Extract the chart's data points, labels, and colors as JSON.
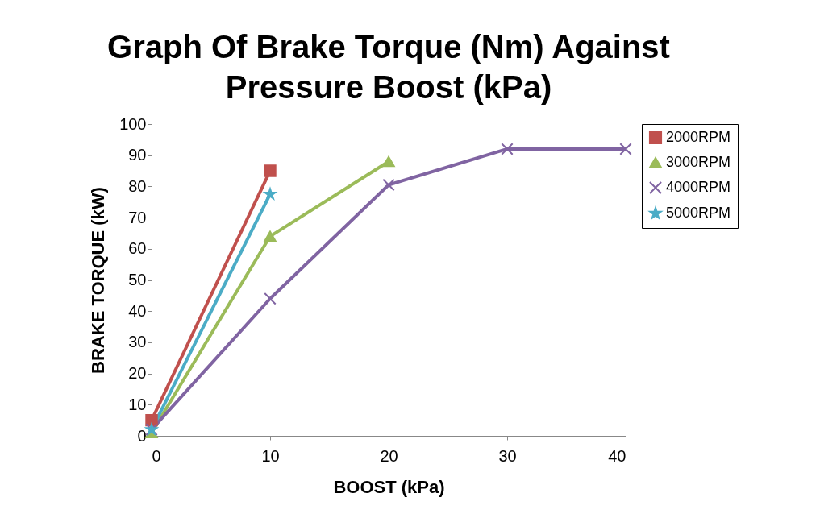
{
  "chart_data": {
    "type": "line",
    "title": [
      "Graph Of Brake Torque (Nm) Against",
      "Pressure Boost (kPa)"
    ],
    "xlabel": "BOOST (kPa)",
    "ylabel": "BRAKE TORQUE (kW)",
    "x": [
      0,
      10,
      20,
      30,
      40
    ],
    "xlim": [
      0,
      40
    ],
    "xticks": [
      0,
      10,
      20,
      30,
      40
    ],
    "ylim": [
      0,
      100
    ],
    "yticks": [
      0,
      10,
      20,
      30,
      40,
      50,
      60,
      70,
      80,
      90,
      100
    ],
    "grid": false,
    "legend": "right",
    "series": [
      {
        "name": "2000RPM",
        "color": "#c0504d",
        "marker": "square",
        "values": [
          5,
          85,
          null,
          null,
          null
        ]
      },
      {
        "name": "3000RPM",
        "color": "#9bbb59",
        "marker": "triangle",
        "values": [
          1,
          64,
          88,
          null,
          null
        ]
      },
      {
        "name": "4000RPM",
        "color": "#8064a2",
        "marker": "cross",
        "values": [
          2,
          44,
          80.5,
          92,
          92
        ]
      },
      {
        "name": "5000RPM",
        "color": "#4bacc6",
        "marker": "star",
        "values": [
          2,
          77.5,
          null,
          null,
          null
        ]
      }
    ]
  }
}
